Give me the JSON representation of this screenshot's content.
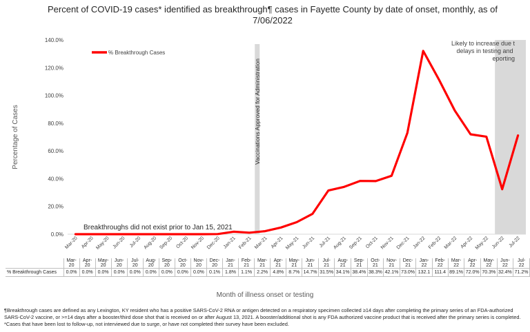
{
  "title": "Percent of COVID-19 cases* identified as breakthrough¶ cases in Fayette County by date of onset, monthly, as of 7/06/2022",
  "chart_data": {
    "type": "line",
    "categories": [
      "Mar-20",
      "Apr-20",
      "May-20",
      "Jun-20",
      "Jul-20",
      "Aug-20",
      "Sep-20",
      "Oct-20",
      "Nov-20",
      "Dec-20",
      "Jan-21",
      "Feb-21",
      "Mar-21",
      "Apr-21",
      "May-21",
      "Jun-21",
      "Jul-21",
      "Aug-21",
      "Sep-21",
      "Oct-21",
      "Nov-21",
      "Dec-21",
      "Jan-22",
      "Feb-22",
      "Mar-22",
      "Apr-22",
      "May-22",
      "Jun-22",
      "Jul-22"
    ],
    "table_categories": [
      [
        "Mar-",
        "20"
      ],
      [
        "Apr-",
        "20"
      ],
      [
        "May-",
        "20"
      ],
      [
        "Jun-",
        "20"
      ],
      [
        "Jul-",
        "20"
      ],
      [
        "Aug-",
        "20"
      ],
      [
        "Sep-",
        "20"
      ],
      [
        "Oct-",
        "20"
      ],
      [
        "Nov-",
        "20"
      ],
      [
        "Dec-",
        "20"
      ],
      [
        "Jan-",
        "21"
      ],
      [
        "Feb-",
        "21"
      ],
      [
        "Mar-",
        "21"
      ],
      [
        "Apr-",
        "21"
      ],
      [
        "May-",
        "21"
      ],
      [
        "Jun-",
        "21"
      ],
      [
        "Jul-",
        "21"
      ],
      [
        "Aug-",
        "21"
      ],
      [
        "Sep-",
        "21"
      ],
      [
        "Oct-",
        "21"
      ],
      [
        "Nov-",
        "21"
      ],
      [
        "Dec-",
        "21"
      ],
      [
        "Jan-",
        "22"
      ],
      [
        "Feb-",
        "22"
      ],
      [
        "Mar-",
        "22"
      ],
      [
        "Apr-",
        "22"
      ],
      [
        "May-",
        "22"
      ],
      [
        "Jun-",
        "22"
      ],
      [
        "Jul-",
        "22"
      ]
    ],
    "series": [
      {
        "name": "% Breakthrough Cases",
        "values": [
          0,
          0,
          0,
          0,
          0,
          0,
          0,
          0,
          0,
          0.1,
          1.8,
          1.1,
          2.2,
          4.8,
          8.7,
          14.7,
          31.5,
          34.1,
          38.4,
          38.3,
          42.1,
          73.0,
          132.1,
          111.4,
          89.1,
          72.0,
          70.3,
          32.4,
          71.2
        ],
        "labels": [
          "0.0%",
          "0.0%",
          "0.0%",
          "0.0%",
          "0.0%",
          "0.0%",
          "0.0%",
          "0.0%",
          "0.0%",
          "0.1%",
          "1.8%",
          "1.1%",
          "2.2%",
          "4.8%",
          "8.7%",
          "14.7%",
          "31.5%",
          "34.1%",
          "38.4%",
          "38.3%",
          "42.1%",
          "73.0%",
          "132.1",
          "111.4",
          "89.1%",
          "72.0%",
          "70.3%",
          "32.4%",
          "71.2%"
        ],
        "color": "#ff0000"
      }
    ],
    "yticks": [
      "0.0%",
      "20.0%",
      "40.0%",
      "60.0%",
      "80.0%",
      "100.0%",
      "120.0%",
      "140.0%"
    ],
    "ylim": [
      0,
      140
    ],
    "ylabel": "Percentage of Cases",
    "xlabel": "Month of illness onset or testing",
    "legend": "% Breakthrough Cases",
    "legend_position": "top-left",
    "annotations": {
      "vaccination": "Vaccinations Approved for Administration",
      "no_breakthrough": "Breakthroughs did not exist prior to Jan 15, 2021",
      "increase": "Likely to increase due to delays in testing and reporting"
    },
    "vaccination_month": "Feb-21",
    "shaded_months": [
      "Jun-22",
      "Jul-22"
    ],
    "grid": false
  },
  "colors": {
    "line": "#ff0000",
    "shade": "#d9d9d9",
    "vaccination_bar": "#d9d9d9"
  },
  "footnote": "¶Breakthrough cases are defined as any Lexington, KY resident who has a positive SARS-CoV-2 RNA or antigen detected on a respiratory specimen collected ≥14 days after completing the primary series of an FDA-authorized SARS-CoV-2 vaccine, or >=14 days after a booster/third dose shot that is received on or after August 13, 2021.  A booster/additional shot is any FDA authorized vaccine product that is received after the primary series is completed. *Cases that have been lost to follow-up, not interviewed due to surge, or have not completed their survey have been excluded."
}
